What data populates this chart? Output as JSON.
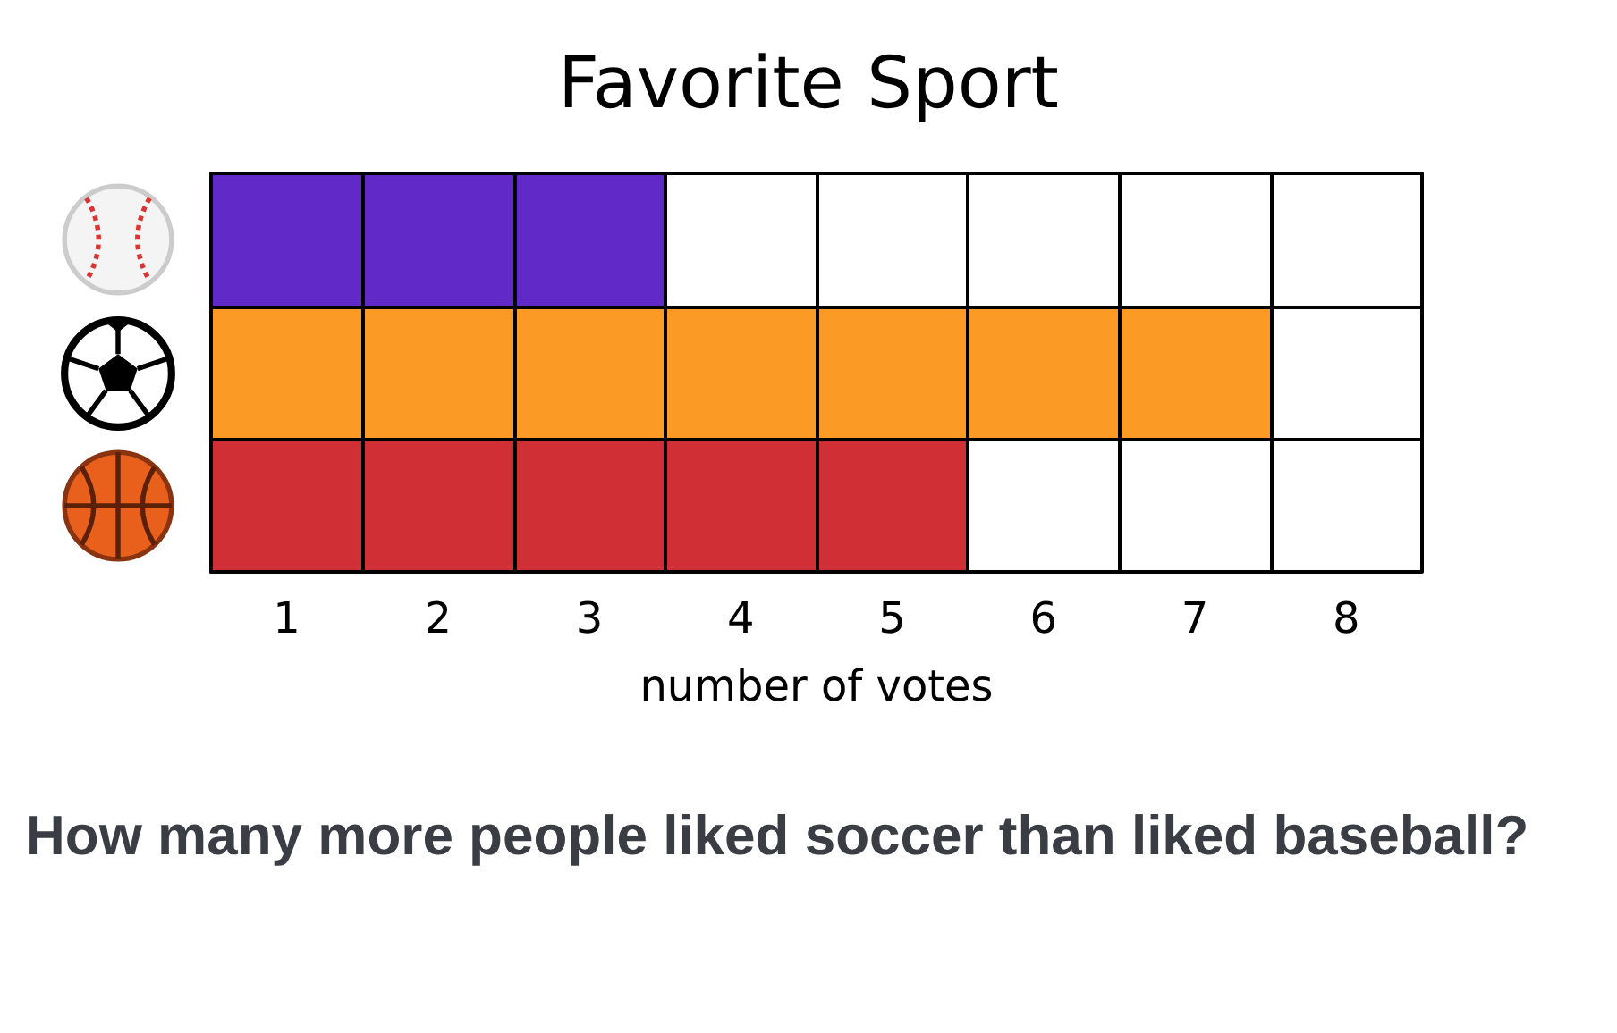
{
  "chart_data": {
    "type": "bar",
    "orientation": "horizontal",
    "title": "Favorite Sport",
    "xlabel": "number of votes",
    "categories": [
      null,
      null,
      null
    ],
    "values": [
      3,
      7,
      5
    ],
    "colors": [
      "#6229c9",
      "#fb9a24",
      "#d03035"
    ],
    "xlim": [
      0,
      8
    ],
    "xticks": [
      {
        "value": 0.5,
        "label": "1"
      },
      {
        "value": 1.5,
        "label": "2"
      },
      {
        "value": 2.5,
        "label": "3"
      },
      {
        "value": 3.5,
        "label": "4"
      },
      {
        "value": 4.5,
        "label": "5"
      },
      {
        "value": 5.5,
        "label": "6"
      },
      {
        "value": 6.5,
        "label": "7"
      },
      {
        "value": 7.5,
        "label": "8"
      }
    ],
    "grid": true,
    "tick_labels": "x",
    "annotations": [
      "How many more people liked soccer than liked baseball?"
    ]
  }
}
